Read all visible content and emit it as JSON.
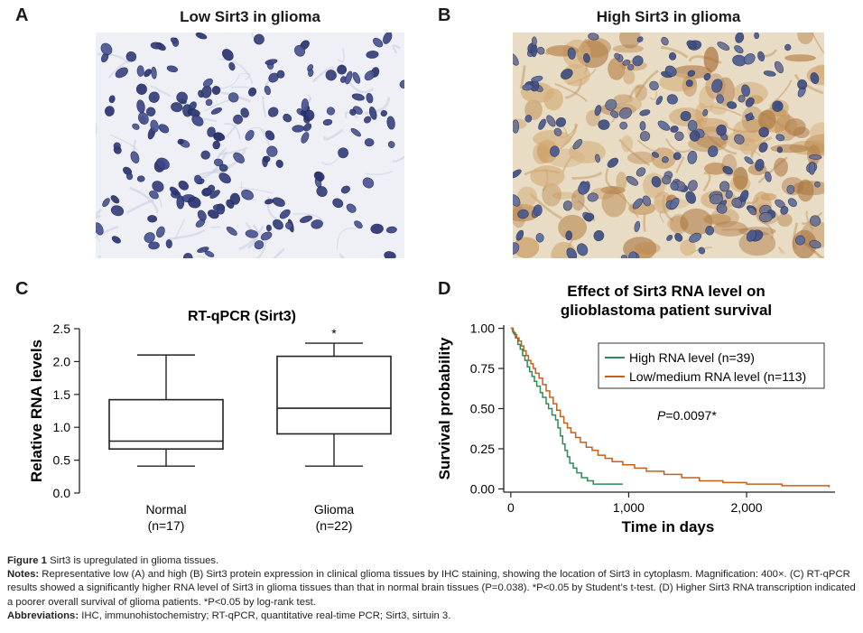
{
  "panels": {
    "a": {
      "letter": "A",
      "title": "Low Sirt3 in glioma"
    },
    "b": {
      "letter": "B",
      "title": "High Sirt3 in glioma"
    },
    "c": {
      "letter": "C"
    },
    "d": {
      "letter": "D"
    }
  },
  "chart_data": [
    {
      "type": "box",
      "title": "RT-qPCR (Sirt3)",
      "ylabel": "Relative RNA levels",
      "xlabel": "",
      "ylim": [
        0.0,
        2.5
      ],
      "yticks": [
        "0.0",
        "0.5",
        "1.0",
        "1.5",
        "2.0",
        "2.5"
      ],
      "groups": [
        {
          "label": "Normal",
          "n_label": "(n=17)",
          "min": 0.41,
          "q1": 0.67,
          "median": 0.79,
          "q3": 1.42,
          "max": 2.1,
          "annotation": ""
        },
        {
          "label": "Glioma",
          "n_label": "(n=22)",
          "min": 0.41,
          "q1": 0.9,
          "median": 1.29,
          "q3": 2.08,
          "max": 2.28,
          "annotation": "*"
        }
      ],
      "grid": false
    },
    {
      "type": "line",
      "title": "Effect of Sirt3 RNA level on glioblastoma patient survival",
      "title_lines": [
        "Effect of Sirt3 RNA level on",
        "glioblastoma patient survival"
      ],
      "xlabel": "Time in days",
      "ylabel": "Survival probability",
      "xlim": [
        -60,
        2750
      ],
      "ylim": [
        -0.02,
        1.02
      ],
      "xticks": [
        "0",
        "1,000",
        "2,000"
      ],
      "yticks": [
        "0.00",
        "0.25",
        "0.50",
        "0.75",
        "1.00"
      ],
      "legend_position": "top-right",
      "annotation_prefix": "P",
      "annotation_value": "=0.0097*",
      "grid": false,
      "series": [
        {
          "name": "High RNA level (n=39)",
          "color": "#2e8b57",
          "points": [
            [
              0,
              1.0
            ],
            [
              20,
              0.97
            ],
            [
              40,
              0.94
            ],
            [
              60,
              0.9
            ],
            [
              80,
              0.87
            ],
            [
              100,
              0.83
            ],
            [
              120,
              0.8
            ],
            [
              140,
              0.76
            ],
            [
              160,
              0.73
            ],
            [
              180,
              0.7
            ],
            [
              200,
              0.67
            ],
            [
              220,
              0.64
            ],
            [
              250,
              0.6
            ],
            [
              270,
              0.57
            ],
            [
              300,
              0.53
            ],
            [
              320,
              0.5
            ],
            [
              350,
              0.46
            ],
            [
              380,
              0.43
            ],
            [
              400,
              0.38
            ],
            [
              420,
              0.33
            ],
            [
              440,
              0.28
            ],
            [
              460,
              0.24
            ],
            [
              480,
              0.2
            ],
            [
              500,
              0.16
            ],
            [
              530,
              0.13
            ],
            [
              560,
              0.1
            ],
            [
              600,
              0.07
            ],
            [
              650,
              0.05
            ],
            [
              700,
              0.03
            ],
            [
              950,
              0.03
            ]
          ]
        },
        {
          "name": "Low/medium RNA level (n=113)",
          "color": "#c65f1a",
          "points": [
            [
              0,
              1.0
            ],
            [
              15,
              0.98
            ],
            [
              30,
              0.96
            ],
            [
              50,
              0.94
            ],
            [
              70,
              0.92
            ],
            [
              90,
              0.89
            ],
            [
              110,
              0.86
            ],
            [
              130,
              0.83
            ],
            [
              150,
              0.8
            ],
            [
              170,
              0.78
            ],
            [
              190,
              0.75
            ],
            [
              210,
              0.72
            ],
            [
              240,
              0.69
            ],
            [
              270,
              0.65
            ],
            [
              300,
              0.61
            ],
            [
              330,
              0.57
            ],
            [
              360,
              0.53
            ],
            [
              390,
              0.49
            ],
            [
              420,
              0.45
            ],
            [
              450,
              0.41
            ],
            [
              480,
              0.38
            ],
            [
              510,
              0.35
            ],
            [
              550,
              0.32
            ],
            [
              590,
              0.29
            ],
            [
              640,
              0.26
            ],
            [
              690,
              0.24
            ],
            [
              740,
              0.21
            ],
            [
              800,
              0.19
            ],
            [
              860,
              0.17
            ],
            [
              950,
              0.15
            ],
            [
              1050,
              0.13
            ],
            [
              1150,
              0.11
            ],
            [
              1300,
              0.09
            ],
            [
              1450,
              0.07
            ],
            [
              1600,
              0.05
            ],
            [
              1800,
              0.04
            ],
            [
              2000,
              0.03
            ],
            [
              2300,
              0.02
            ],
            [
              2700,
              0.01
            ]
          ]
        }
      ]
    }
  ],
  "caption": {
    "fig_label": "Figure 1",
    "fig_text": " Sirt3 is upregulated in glioma tissues.",
    "notes_label": "Notes:",
    "notes_text": " Representative low (A) and high (B) Sirt3 protein expression in clinical glioma tissues by IHC staining, showing the location of Sirt3 in cytoplasm. Magnification: 400×. (C) RT-qPCR results showed a significantly higher RNA level of Sirt3 in glioma tissues than that in normal brain tissues (P=0.038). *P<0.05 by Student’s t-test. (D) Higher Sirt3 RNA transcription indicated a poorer overall survival of glioma patients. *P<0.05 by log-rank test.",
    "abbr_label": "Abbreviations:",
    "abbr_text": " IHC, immunohistochemistry; RT-qPCR, quantitative real-time PCR; Sirt3, sirtuin 3."
  }
}
